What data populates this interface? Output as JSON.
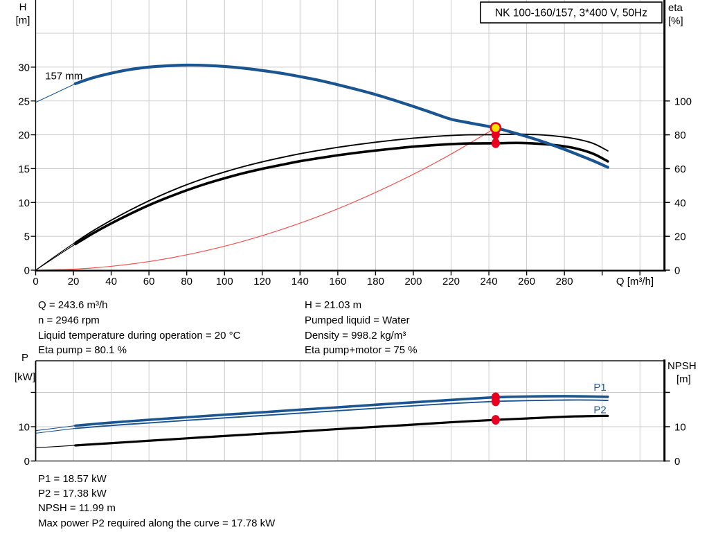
{
  "duty_info": {
    "left": [
      "Q = 243.6 m³/h",
      "n = 2946 rpm",
      "Liquid temperature during operation = 20 °C",
      "Eta pump = 80.1 %"
    ],
    "right": [
      "H = 21.03 m",
      "Pumped liquid = Water",
      "Density = 998.2 kg/m³",
      "Eta pump+motor = 75 %"
    ]
  },
  "power_info": [
    "P1 = 18.57 kW",
    "P2 = 17.38 kW",
    "NPSH = 11.99 m",
    "Max power P2 required along the curve = 17.78 kW"
  ],
  "colors": {
    "curve_blue": "#1a5591",
    "curve_black": "#000000",
    "system_red": "#f35151",
    "marker_red": "#e8001f",
    "duty_yellow": "#ffdf00",
    "grid_gray": "#cbcbcb",
    "label_blue": "#1f5796"
  },
  "chart_data": [
    {
      "type": "line",
      "title": "NK 100-160/157, 3*400 V, 50Hz",
      "x_axis": {
        "title": "Q [m³/h]",
        "range": [
          0,
          333
        ],
        "tick_values": [
          0,
          20,
          40,
          60,
          80,
          100,
          120,
          140,
          160,
          180,
          200,
          220,
          240,
          260,
          280,
          300,
          320
        ],
        "tick_labels": [
          "0",
          "20",
          "40",
          "60",
          "80",
          "100",
          "120",
          "140",
          "160",
          "180",
          "200",
          "220",
          "240",
          "260",
          "280",
          "",
          ""
        ],
        "grid_values": [
          20,
          40,
          60,
          80,
          100,
          120,
          140,
          160,
          180,
          200,
          220,
          240,
          260,
          280,
          300,
          320
        ]
      },
      "y_left": {
        "title_lines": [
          "H",
          "[m]"
        ],
        "range": [
          0,
          40
        ],
        "tick_values": [
          0,
          5,
          10,
          15,
          20,
          25,
          30
        ],
        "tick_labels": [
          "0",
          "5",
          "10",
          "15",
          "20",
          "25",
          "30"
        ],
        "grid_values": [
          5,
          10,
          15,
          20,
          25,
          30,
          35
        ]
      },
      "y_right": {
        "title_lines": [
          "eta",
          "[%]"
        ],
        "range": [
          0,
          160
        ],
        "tick_values": [
          0,
          20,
          40,
          60,
          80,
          100
        ],
        "tick_labels": [
          "0",
          "20",
          "40",
          "60",
          "80",
          "100"
        ],
        "grid_values": []
      },
      "series": [
        {
          "id": "system-curve",
          "axis": "left",
          "color": "#f35151",
          "width": 1.2,
          "points": [
            [
              0,
              0
            ],
            [
              20,
              0.14
            ],
            [
              40,
              0.57
            ],
            [
              60,
              1.27
            ],
            [
              80,
              2.27
            ],
            [
              100,
              3.54
            ],
            [
              120,
              5.1
            ],
            [
              140,
              6.94
            ],
            [
              160,
              9.07
            ],
            [
              180,
              11.48
            ],
            [
              200,
              14.17
            ],
            [
              220,
              17.15
            ],
            [
              243.6,
              21.03
            ]
          ]
        },
        {
          "id": "eta-pump-curve",
          "axis": "right",
          "color": "#000000",
          "width": 1.9,
          "thin_until": 21,
          "points": [
            [
              0,
              0
            ],
            [
              10,
              8
            ],
            [
              21,
              16.5
            ],
            [
              30,
              23
            ],
            [
              40,
              29.5
            ],
            [
              50,
              35.5
            ],
            [
              60,
              41
            ],
            [
              70,
              46
            ],
            [
              80,
              50.5
            ],
            [
              90,
              54.5
            ],
            [
              100,
              58
            ],
            [
              110,
              61.2
            ],
            [
              120,
              64
            ],
            [
              130,
              66.5
            ],
            [
              140,
              68.8
            ],
            [
              150,
              70.8
            ],
            [
              160,
              72.6
            ],
            [
              170,
              74.2
            ],
            [
              180,
              75.6
            ],
            [
              190,
              76.9
            ],
            [
              200,
              78
            ],
            [
              210,
              78.9
            ],
            [
              220,
              79.6
            ],
            [
              230,
              80
            ],
            [
              243.6,
              80.1
            ],
            [
              255,
              80.4
            ],
            [
              265,
              80.1
            ],
            [
              275,
              79.3
            ],
            [
              285,
              77.8
            ],
            [
              295,
              75
            ],
            [
              303,
              70.5
            ]
          ]
        },
        {
          "id": "eta-pump-motor-curve",
          "axis": "right",
          "color": "#000000",
          "width": 3.6,
          "thin_until": 21,
          "points": [
            [
              0,
              0
            ],
            [
              10,
              7.4
            ],
            [
              21,
              15.4
            ],
            [
              30,
              21.5
            ],
            [
              40,
              27.6
            ],
            [
              50,
              33.2
            ],
            [
              60,
              38.4
            ],
            [
              70,
              43
            ],
            [
              80,
              47.2
            ],
            [
              90,
              51
            ],
            [
              100,
              54.3
            ],
            [
              110,
              57.3
            ],
            [
              120,
              59.9
            ],
            [
              130,
              62.2
            ],
            [
              140,
              64.4
            ],
            [
              150,
              66.2
            ],
            [
              160,
              67.9
            ],
            [
              170,
              69.4
            ],
            [
              180,
              70.7
            ],
            [
              190,
              71.9
            ],
            [
              200,
              73
            ],
            [
              210,
              73.8
            ],
            [
              220,
              74.5
            ],
            [
              230,
              74.9
            ],
            [
              243.6,
              75
            ],
            [
              255,
              75.2
            ],
            [
              265,
              74.8
            ],
            [
              275,
              73.9
            ],
            [
              285,
              72.2
            ],
            [
              295,
              68.9
            ],
            [
              303,
              64.3
            ]
          ]
        },
        {
          "id": "head-curve",
          "label": "157 mm",
          "label_at": [
            5,
            28.2
          ],
          "label_color": "#000000",
          "axis": "left",
          "color": "#1a5591",
          "width": 4.2,
          "thin_until": 21,
          "points": [
            [
              0,
              24.8
            ],
            [
              10,
              26.1
            ],
            [
              21,
              27.55
            ],
            [
              30,
              28.4
            ],
            [
              40,
              29.1
            ],
            [
              50,
              29.65
            ],
            [
              60,
              30
            ],
            [
              70,
              30.2
            ],
            [
              80,
              30.3
            ],
            [
              90,
              30.25
            ],
            [
              100,
              30.1
            ],
            [
              110,
              29.85
            ],
            [
              120,
              29.5
            ],
            [
              130,
              29.1
            ],
            [
              140,
              28.6
            ],
            [
              150,
              28.05
            ],
            [
              160,
              27.4
            ],
            [
              170,
              26.7
            ],
            [
              180,
              25.95
            ],
            [
              190,
              25.1
            ],
            [
              200,
              24.2
            ],
            [
              210,
              23.25
            ],
            [
              220,
              22.3
            ],
            [
              230,
              21.75
            ],
            [
              243.6,
              21.03
            ],
            [
              250,
              20.55
            ],
            [
              260,
              19.75
            ],
            [
              270,
              18.85
            ],
            [
              280,
              17.85
            ],
            [
              290,
              16.75
            ],
            [
              297,
              15.95
            ],
            [
              303,
              15.2
            ]
          ]
        }
      ],
      "markers": [
        {
          "type": "point",
          "q": 243.6,
          "v": 80.1,
          "axis": "right"
        },
        {
          "type": "point",
          "q": 243.6,
          "v": 75,
          "axis": "right"
        },
        {
          "type": "duty",
          "q": 243.6,
          "v": 21.03,
          "axis": "left"
        }
      ]
    },
    {
      "type": "line",
      "title": "",
      "x_axis": {
        "title": "",
        "range": [
          0,
          333
        ],
        "tick_values": [],
        "tick_labels": [],
        "grid_values": [
          20,
          40,
          60,
          80,
          100,
          120,
          140,
          160,
          180,
          200,
          220,
          240,
          260,
          280,
          300,
          320
        ]
      },
      "y_left": {
        "title_lines": [
          "P",
          "[kW]"
        ],
        "range": [
          0,
          29.2
        ],
        "tick_values": [
          0,
          10,
          20
        ],
        "tick_labels": [
          "0",
          "10",
          ""
        ],
        "grid_values": [
          10,
          20
        ]
      },
      "y_right": {
        "title_lines": [
          "NPSH",
          "[m]"
        ],
        "range": [
          0,
          29.2
        ],
        "tick_values": [
          0,
          10,
          20
        ],
        "tick_labels": [
          "0",
          "10",
          ""
        ],
        "grid_values": []
      },
      "series": [
        {
          "id": "npsh-curve",
          "axis": "right",
          "color": "#000000",
          "width": 3.2,
          "thin_until": 21,
          "points": [
            [
              0,
              3.85
            ],
            [
              21,
              4.55
            ],
            [
              40,
              5.2
            ],
            [
              60,
              5.9
            ],
            [
              80,
              6.6
            ],
            [
              100,
              7.3
            ],
            [
              120,
              7.95
            ],
            [
              140,
              8.6
            ],
            [
              160,
              9.3
            ],
            [
              180,
              9.95
            ],
            [
              200,
              10.6
            ],
            [
              220,
              11.3
            ],
            [
              243.6,
              11.99
            ],
            [
              260,
              12.4
            ],
            [
              280,
              12.9
            ],
            [
              295,
              13.1
            ],
            [
              303,
              13.15
            ]
          ]
        },
        {
          "id": "p2-curve",
          "label": "P2",
          "label_at": [
            295.5,
            13.9
          ],
          "label_color": "#1f5796",
          "axis": "left",
          "color": "#1a5591",
          "width": 1.9,
          "thin_until": 21,
          "points": [
            [
              0,
              8.1
            ],
            [
              21,
              9.5
            ],
            [
              40,
              10.35
            ],
            [
              60,
              11.1
            ],
            [
              80,
              11.85
            ],
            [
              100,
              12.55
            ],
            [
              120,
              13.25
            ],
            [
              140,
              13.95
            ],
            [
              160,
              14.65
            ],
            [
              180,
              15.35
            ],
            [
              200,
              16.1
            ],
            [
              220,
              16.75
            ],
            [
              243.6,
              17.38
            ],
            [
              260,
              17.6
            ],
            [
              275,
              17.73
            ],
            [
              285,
              17.78
            ],
            [
              295,
              17.75
            ],
            [
              303,
              17.65
            ]
          ]
        },
        {
          "id": "p1-curve",
          "label": "P1",
          "label_at": [
            295.5,
            20.5
          ],
          "label_color": "#1f5796",
          "axis": "left",
          "color": "#1a5591",
          "width": 3.6,
          "thin_until": 21,
          "points": [
            [
              0,
              8.85
            ],
            [
              21,
              10.3
            ],
            [
              40,
              11.2
            ],
            [
              60,
              12
            ],
            [
              80,
              12.75
            ],
            [
              100,
              13.5
            ],
            [
              120,
              14.2
            ],
            [
              140,
              14.95
            ],
            [
              160,
              15.65
            ],
            [
              180,
              16.4
            ],
            [
              200,
              17.1
            ],
            [
              220,
              17.8
            ],
            [
              243.6,
              18.57
            ],
            [
              260,
              18.8
            ],
            [
              280,
              18.9
            ],
            [
              295,
              18.8
            ],
            [
              303,
              18.7
            ]
          ]
        }
      ],
      "markers": [
        {
          "type": "point",
          "q": 243.6,
          "v": 18.57,
          "axis": "left"
        },
        {
          "type": "point",
          "q": 243.6,
          "v": 17.38,
          "axis": "left"
        },
        {
          "type": "point",
          "q": 243.6,
          "v": 11.99,
          "axis": "right"
        }
      ]
    }
  ]
}
